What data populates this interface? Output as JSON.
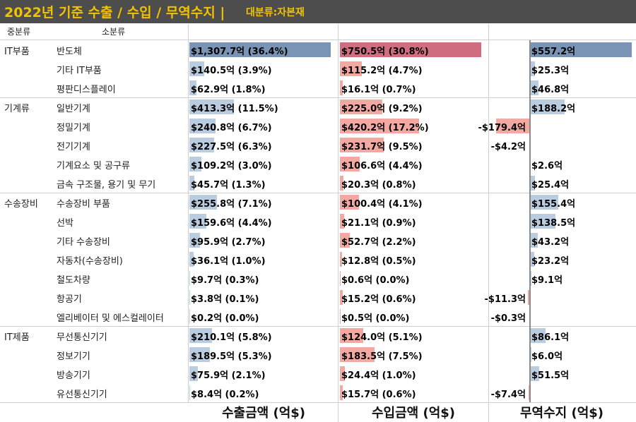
{
  "title": "2022년 기준 수출 / 수입 / 무역수지 |",
  "subtitle": "대분류:자본재",
  "headers": {
    "major": "중분류",
    "minor": "소분류"
  },
  "colors": {
    "export": "#7a94b5",
    "export_light": "#b9cce0",
    "import": "#d16d80",
    "import_light": "#f3a9a2",
    "balance": "#7a94b5",
    "balance_light": "#b9cce0"
  },
  "chart_data": {
    "type": "bar",
    "title": "2022년 기준 수출 / 수입 / 무역수지 | 대분류:자본재",
    "unit": "억$",
    "columns": [
      "수출금액 (억$)",
      "수입금액 (억$)",
      "무역수지 (억$)"
    ],
    "groups": [
      {
        "name": "IT부품",
        "items": [
          {
            "name": "반도체",
            "export": 1307.7,
            "export_share": 36.4,
            "import": 750.5,
            "import_share": 30.8,
            "balance": 557.2,
            "export_label": "$1,307.7억 (36.4%)",
            "import_label": "$750.5억 (30.8%)",
            "balance_label": "$557.2억"
          },
          {
            "name": "기타 IT부품",
            "export": 140.5,
            "export_share": 3.9,
            "import": 115.2,
            "import_share": 4.7,
            "balance": 25.3,
            "export_label": "$140.5억 (3.9%)",
            "import_label": "$115.2억 (4.7%)",
            "balance_label": "$25.3억"
          },
          {
            "name": "평판디스플레이",
            "export": 62.9,
            "export_share": 1.8,
            "import": 16.1,
            "import_share": 0.7,
            "balance": 46.8,
            "export_label": "$62.9억 (1.8%)",
            "import_label": "$16.1억 (0.7%)",
            "balance_label": "$46.8억"
          }
        ]
      },
      {
        "name": "기계류",
        "items": [
          {
            "name": "일반기계",
            "export": 413.3,
            "export_share": 11.5,
            "import": 225.0,
            "import_share": 9.2,
            "balance": 188.2,
            "export_label": "$413.3억 (11.5%)",
            "import_label": "$225.0억 (9.2%)",
            "balance_label": "$188.2억"
          },
          {
            "name": "정밀기계",
            "export": 240.8,
            "export_share": 6.7,
            "import": 420.2,
            "import_share": 17.2,
            "balance": -179.4,
            "export_label": "$240.8억 (6.7%)",
            "import_label": "$420.2억 (17.2%)",
            "balance_label": "-$179.4억"
          },
          {
            "name": "전기기계",
            "export": 227.5,
            "export_share": 6.3,
            "import": 231.7,
            "import_share": 9.5,
            "balance": -4.2,
            "export_label": "$227.5억 (6.3%)",
            "import_label": "$231.7억 (9.5%)",
            "balance_label": "-$4.2억"
          },
          {
            "name": "기계요소 및 공구류",
            "export": 109.2,
            "export_share": 3.0,
            "import": 106.6,
            "import_share": 4.4,
            "balance": 2.6,
            "export_label": "$109.2억 (3.0%)",
            "import_label": "$106.6억 (4.4%)",
            "balance_label": "$2.6억"
          },
          {
            "name": "금속 구조물, 용기 및 무기",
            "export": 45.7,
            "export_share": 1.3,
            "import": 20.3,
            "import_share": 0.8,
            "balance": 25.4,
            "export_label": "$45.7억 (1.3%)",
            "import_label": "$20.3억 (0.8%)",
            "balance_label": "$25.4억"
          }
        ]
      },
      {
        "name": "수송장비",
        "items": [
          {
            "name": "수송장비 부품",
            "export": 255.8,
            "export_share": 7.1,
            "import": 100.4,
            "import_share": 4.1,
            "balance": 155.4,
            "export_label": "$255.8억 (7.1%)",
            "import_label": "$100.4억 (4.1%)",
            "balance_label": "$155.4억"
          },
          {
            "name": "선박",
            "export": 159.6,
            "export_share": 4.4,
            "import": 21.1,
            "import_share": 0.9,
            "balance": 138.5,
            "export_label": "$159.6억 (4.4%)",
            "import_label": "$21.1억 (0.9%)",
            "balance_label": "$138.5억"
          },
          {
            "name": "기타 수송장비",
            "export": 95.9,
            "export_share": 2.7,
            "import": 52.7,
            "import_share": 2.2,
            "balance": 43.2,
            "export_label": "$95.9억 (2.7%)",
            "import_label": "$52.7억 (2.2%)",
            "balance_label": "$43.2억"
          },
          {
            "name": "자동차(수송장비)",
            "export": 36.1,
            "export_share": 1.0,
            "import": 12.8,
            "import_share": 0.5,
            "balance": 23.2,
            "export_label": "$36.1억 (1.0%)",
            "import_label": "$12.8억 (0.5%)",
            "balance_label": "$23.2억"
          },
          {
            "name": "철도차량",
            "export": 9.7,
            "export_share": 0.3,
            "import": 0.6,
            "import_share": 0.0,
            "balance": 9.1,
            "export_label": "$9.7억 (0.3%)",
            "import_label": "$0.6억 (0.0%)",
            "balance_label": "$9.1억"
          },
          {
            "name": "항공기",
            "export": 3.8,
            "export_share": 0.1,
            "import": 15.2,
            "import_share": 0.6,
            "balance": -11.3,
            "export_label": "$3.8억 (0.1%)",
            "import_label": "$15.2억 (0.6%)",
            "balance_label": "-$11.3억"
          },
          {
            "name": "엘리베이터 및 에스컬레이터",
            "export": 0.2,
            "export_share": 0.0,
            "import": 0.5,
            "import_share": 0.0,
            "balance": -0.3,
            "export_label": "$0.2억 (0.0%)",
            "import_label": "$0.5억 (0.0%)",
            "balance_label": "-$0.3억"
          }
        ]
      },
      {
        "name": "IT제품",
        "items": [
          {
            "name": "무선통신기기",
            "export": 210.1,
            "export_share": 5.8,
            "import": 124.0,
            "import_share": 5.1,
            "balance": 86.1,
            "export_label": "$210.1억 (5.8%)",
            "import_label": "$124.0억 (5.1%)",
            "balance_label": "$86.1억"
          },
          {
            "name": "정보기기",
            "export": 189.5,
            "export_share": 5.3,
            "import": 183.5,
            "import_share": 7.5,
            "balance": 6.0,
            "export_label": "$189.5억 (5.3%)",
            "import_label": "$183.5억 (7.5%)",
            "balance_label": "$6.0억"
          },
          {
            "name": "방송기기",
            "export": 75.9,
            "export_share": 2.1,
            "import": 24.4,
            "import_share": 1.0,
            "balance": 51.5,
            "export_label": "$75.9억 (2.1%)",
            "import_label": "$24.4억 (1.0%)",
            "balance_label": "$51.5억"
          },
          {
            "name": "유선통신기기",
            "export": 8.4,
            "export_share": 0.2,
            "import": 15.7,
            "import_share": 0.6,
            "balance": -7.4,
            "export_label": "$8.4억 (0.2%)",
            "import_label": "$15.7억 (0.6%)",
            "balance_label": "-$7.4억"
          }
        ]
      }
    ]
  }
}
